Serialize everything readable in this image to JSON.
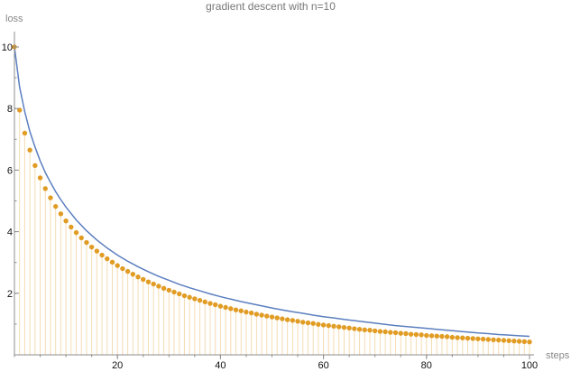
{
  "chart_data": {
    "type": "scatter",
    "title": "gradient descent with n=10",
    "xlabel": "steps",
    "ylabel": "loss",
    "xlim": [
      0,
      100
    ],
    "ylim": [
      0,
      10.5
    ],
    "x_ticks_major": [
      20,
      40,
      60,
      80,
      100
    ],
    "x_ticks_minor_step": 5,
    "y_ticks_major": [
      2,
      4,
      6,
      8,
      10
    ],
    "y_ticks_minor_step": 1,
    "series": [
      {
        "kind": "points",
        "color": "#e19c24",
        "stems": true,
        "x": [
          0,
          1,
          2,
          3,
          4,
          5,
          6,
          7,
          8,
          9,
          10,
          11,
          12,
          13,
          14,
          15,
          16,
          17,
          18,
          19,
          20,
          21,
          22,
          23,
          24,
          25,
          26,
          27,
          28,
          29,
          30,
          31,
          32,
          33,
          34,
          35,
          36,
          37,
          38,
          39,
          40,
          41,
          42,
          43,
          44,
          45,
          46,
          47,
          48,
          49,
          50,
          51,
          52,
          53,
          54,
          55,
          56,
          57,
          58,
          59,
          60,
          61,
          62,
          63,
          64,
          65,
          66,
          67,
          68,
          69,
          70,
          71,
          72,
          73,
          74,
          75,
          76,
          77,
          78,
          79,
          80,
          81,
          82,
          83,
          84,
          85,
          86,
          87,
          88,
          89,
          90,
          91,
          92,
          93,
          94,
          95,
          96,
          97,
          98,
          99,
          100
        ],
        "values": [
          10.0,
          7.95,
          7.2,
          6.65,
          6.15,
          5.75,
          5.4,
          5.1,
          4.82,
          4.58,
          4.35,
          4.15,
          3.97,
          3.8,
          3.65,
          3.5,
          3.37,
          3.24,
          3.12,
          3.01,
          2.9,
          2.8,
          2.71,
          2.62,
          2.53,
          2.45,
          2.37,
          2.3,
          2.23,
          2.16,
          2.1,
          2.04,
          1.98,
          1.92,
          1.87,
          1.82,
          1.77,
          1.72,
          1.67,
          1.63,
          1.58,
          1.54,
          1.5,
          1.46,
          1.43,
          1.39,
          1.36,
          1.32,
          1.29,
          1.26,
          1.23,
          1.2,
          1.17,
          1.14,
          1.12,
          1.09,
          1.06,
          1.04,
          1.02,
          0.99,
          0.97,
          0.95,
          0.93,
          0.91,
          0.89,
          0.87,
          0.85,
          0.83,
          0.81,
          0.8,
          0.78,
          0.76,
          0.75,
          0.73,
          0.72,
          0.7,
          0.69,
          0.67,
          0.66,
          0.65,
          0.63,
          0.62,
          0.61,
          0.6,
          0.59,
          0.57,
          0.56,
          0.55,
          0.54,
          0.53,
          0.52,
          0.51,
          0.5,
          0.49,
          0.48,
          0.47,
          0.46,
          0.45,
          0.44,
          0.43,
          0.42
        ]
      },
      {
        "kind": "curve",
        "color": "#5b7fbf",
        "x": [
          0,
          1,
          2,
          3,
          4,
          5,
          6,
          7,
          8,
          9,
          10,
          12,
          14,
          16,
          18,
          20,
          22,
          24,
          26,
          28,
          30,
          32,
          34,
          36,
          38,
          40,
          42,
          44,
          46,
          48,
          50,
          52,
          54,
          56,
          58,
          60,
          62,
          64,
          66,
          68,
          70,
          72,
          74,
          76,
          78,
          80,
          82,
          84,
          86,
          88,
          90,
          92,
          94,
          96,
          98,
          100
        ],
        "values": [
          10.0,
          8.7,
          7.9,
          7.25,
          6.75,
          6.3,
          5.92,
          5.6,
          5.3,
          5.04,
          4.8,
          4.38,
          4.03,
          3.73,
          3.47,
          3.24,
          3.04,
          2.86,
          2.7,
          2.55,
          2.42,
          2.29,
          2.18,
          2.08,
          1.98,
          1.89,
          1.81,
          1.73,
          1.66,
          1.59,
          1.52,
          1.46,
          1.4,
          1.35,
          1.29,
          1.24,
          1.2,
          1.15,
          1.11,
          1.07,
          1.03,
          0.99,
          0.95,
          0.92,
          0.89,
          0.86,
          0.83,
          0.8,
          0.77,
          0.74,
          0.71,
          0.69,
          0.66,
          0.64,
          0.62,
          0.6
        ]
      }
    ]
  }
}
